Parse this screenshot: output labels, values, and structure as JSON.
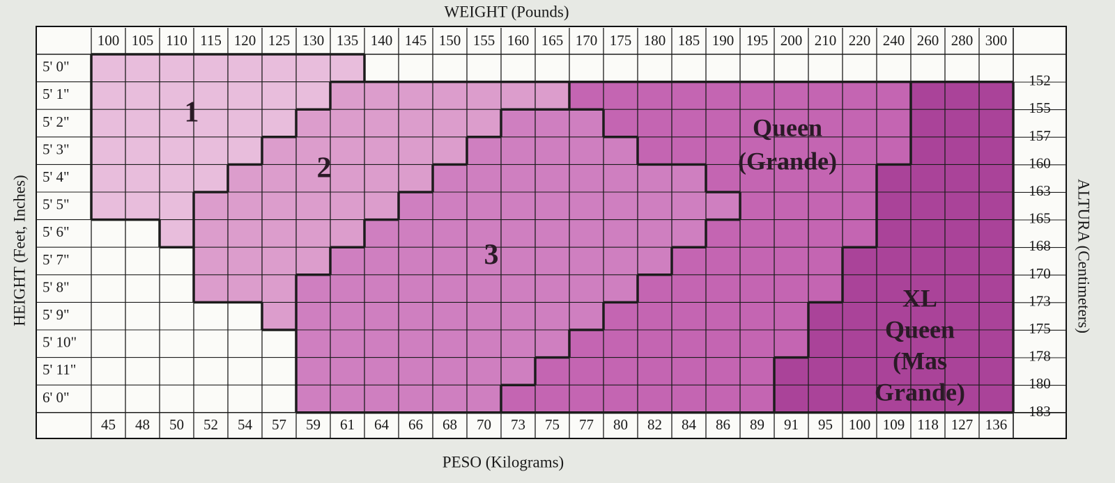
{
  "axis_titles": {
    "top": "WEIGHT (Pounds)",
    "bottom": "PESO (Kilograms)",
    "left": "HEIGHT (Feet, Inches)",
    "right": "ALTURA (Centimeters)"
  },
  "weights_lb": [
    100,
    105,
    110,
    115,
    120,
    125,
    130,
    135,
    140,
    145,
    150,
    155,
    160,
    165,
    170,
    175,
    180,
    185,
    190,
    195,
    200,
    210,
    220,
    240,
    260,
    280,
    300
  ],
  "weights_kg": [
    45,
    48,
    50,
    52,
    54,
    57,
    59,
    61,
    64,
    66,
    68,
    70,
    73,
    75,
    77,
    80,
    82,
    84,
    86,
    89,
    91,
    95,
    100,
    109,
    118,
    127,
    136
  ],
  "heights_ft_in": [
    "5' 0\"",
    "5' 1\"",
    "5' 2\"",
    "5' 3\"",
    "5' 4\"",
    "5' 5\"",
    "5' 6\"",
    "5' 7\"",
    "5' 8\"",
    "5' 9\"",
    "5' 10\"",
    "5' 11\"",
    "6' 0\""
  ],
  "heights_cm": [
    152,
    155,
    157,
    160,
    163,
    165,
    168,
    170,
    173,
    175,
    178,
    180,
    183
  ],
  "sizes": [
    {
      "label": [
        "1"
      ]
    },
    {
      "label": [
        "2"
      ]
    },
    {
      "label": [
        "3"
      ]
    },
    {
      "label": [
        "Queen",
        "(Grande)"
      ]
    },
    {
      "label": [
        "XL",
        "Queen",
        "(Mas",
        "Grande)"
      ]
    }
  ]
}
